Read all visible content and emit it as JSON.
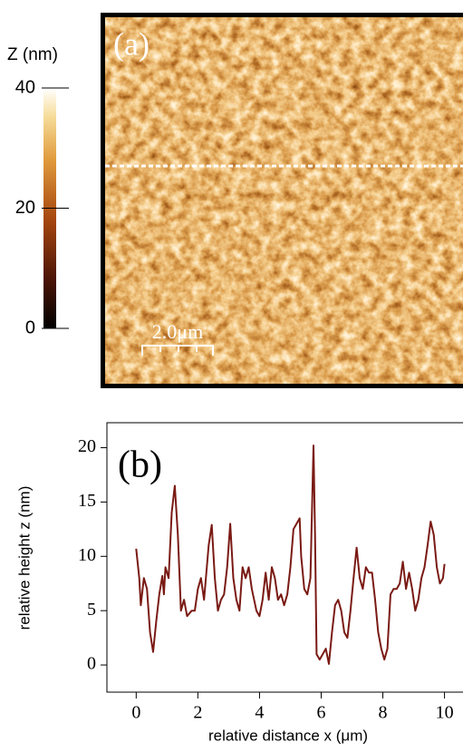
{
  "chart_data": [
    {
      "type": "colorbar",
      "title": "Z (nm)",
      "panel_label": "(a)",
      "scale_bar": "2.0μm",
      "ylim": [
        0,
        40
      ],
      "yticks": [
        0,
        20,
        40
      ]
    },
    {
      "type": "line",
      "panel_label": "(b)",
      "x_label": "relative distance x (μm)",
      "y_label": "relative height z (nm)",
      "color": "#7a1a14",
      "xlim": [
        -0.95,
        10.6
      ],
      "ylim": [
        -2.5,
        22.3
      ],
      "xticks": [
        0,
        2,
        4,
        6,
        8,
        10
      ],
      "yticks": [
        0,
        5,
        10,
        15,
        20
      ],
      "x": [
        0,
        0.1,
        0.15,
        0.25,
        0.35,
        0.45,
        0.55,
        0.65,
        0.75,
        0.85,
        0.9,
        0.95,
        1.05,
        1.15,
        1.25,
        1.35,
        1.45,
        1.55,
        1.65,
        1.8,
        1.9,
        2.0,
        2.1,
        2.2,
        2.35,
        2.45,
        2.55,
        2.65,
        2.75,
        2.85,
        2.95,
        3.05,
        3.15,
        3.25,
        3.35,
        3.45,
        3.55,
        3.65,
        3.75,
        3.9,
        4.0,
        4.1,
        4.2,
        4.3,
        4.4,
        4.5,
        4.6,
        4.7,
        4.8,
        4.9,
        5.0,
        5.1,
        5.2,
        5.3,
        5.35,
        5.45,
        5.55,
        5.65,
        5.75,
        5.8,
        5.85,
        5.95,
        6.05,
        6.15,
        6.25,
        6.35,
        6.45,
        6.55,
        6.65,
        6.75,
        6.85,
        6.95,
        7.05,
        7.15,
        7.25,
        7.35,
        7.45,
        7.55,
        7.65,
        7.75,
        7.85,
        7.95,
        8.05,
        8.15,
        8.25,
        8.35,
        8.45,
        8.55,
        8.65,
        8.75,
        8.85,
        8.95,
        9.05,
        9.15,
        9.25,
        9.35,
        9.45,
        9.55,
        9.65,
        9.75,
        9.85,
        9.95,
        10.0
      ],
      "values": [
        10.7,
        8,
        5.5,
        8,
        7,
        3,
        1.2,
        4,
        6.5,
        8.2,
        6.5,
        9,
        8,
        14,
        16.5,
        12,
        5,
        6,
        4.5,
        5,
        5,
        7,
        8,
        6,
        11,
        12.9,
        8,
        5,
        6,
        6.5,
        9,
        13,
        8,
        6,
        5,
        9,
        8,
        9,
        7,
        5,
        4.5,
        6,
        8.5,
        6,
        9,
        8,
        6,
        6.5,
        5.5,
        6.5,
        9,
        12.5,
        13,
        13.5,
        10,
        7,
        6.5,
        8,
        20.2,
        12,
        1,
        0.5,
        1,
        1.5,
        0.1,
        3,
        5.5,
        6,
        5,
        3,
        2.5,
        5,
        8,
        10.8,
        8,
        7,
        9,
        8.5,
        8.5,
        6,
        3,
        1.5,
        0.5,
        1.5,
        6.5,
        7,
        7,
        7.5,
        9.5,
        7,
        8.5,
        7,
        5,
        6,
        8,
        9,
        11,
        13.2,
        12,
        9,
        7.5,
        8,
        9.3
      ]
    }
  ]
}
